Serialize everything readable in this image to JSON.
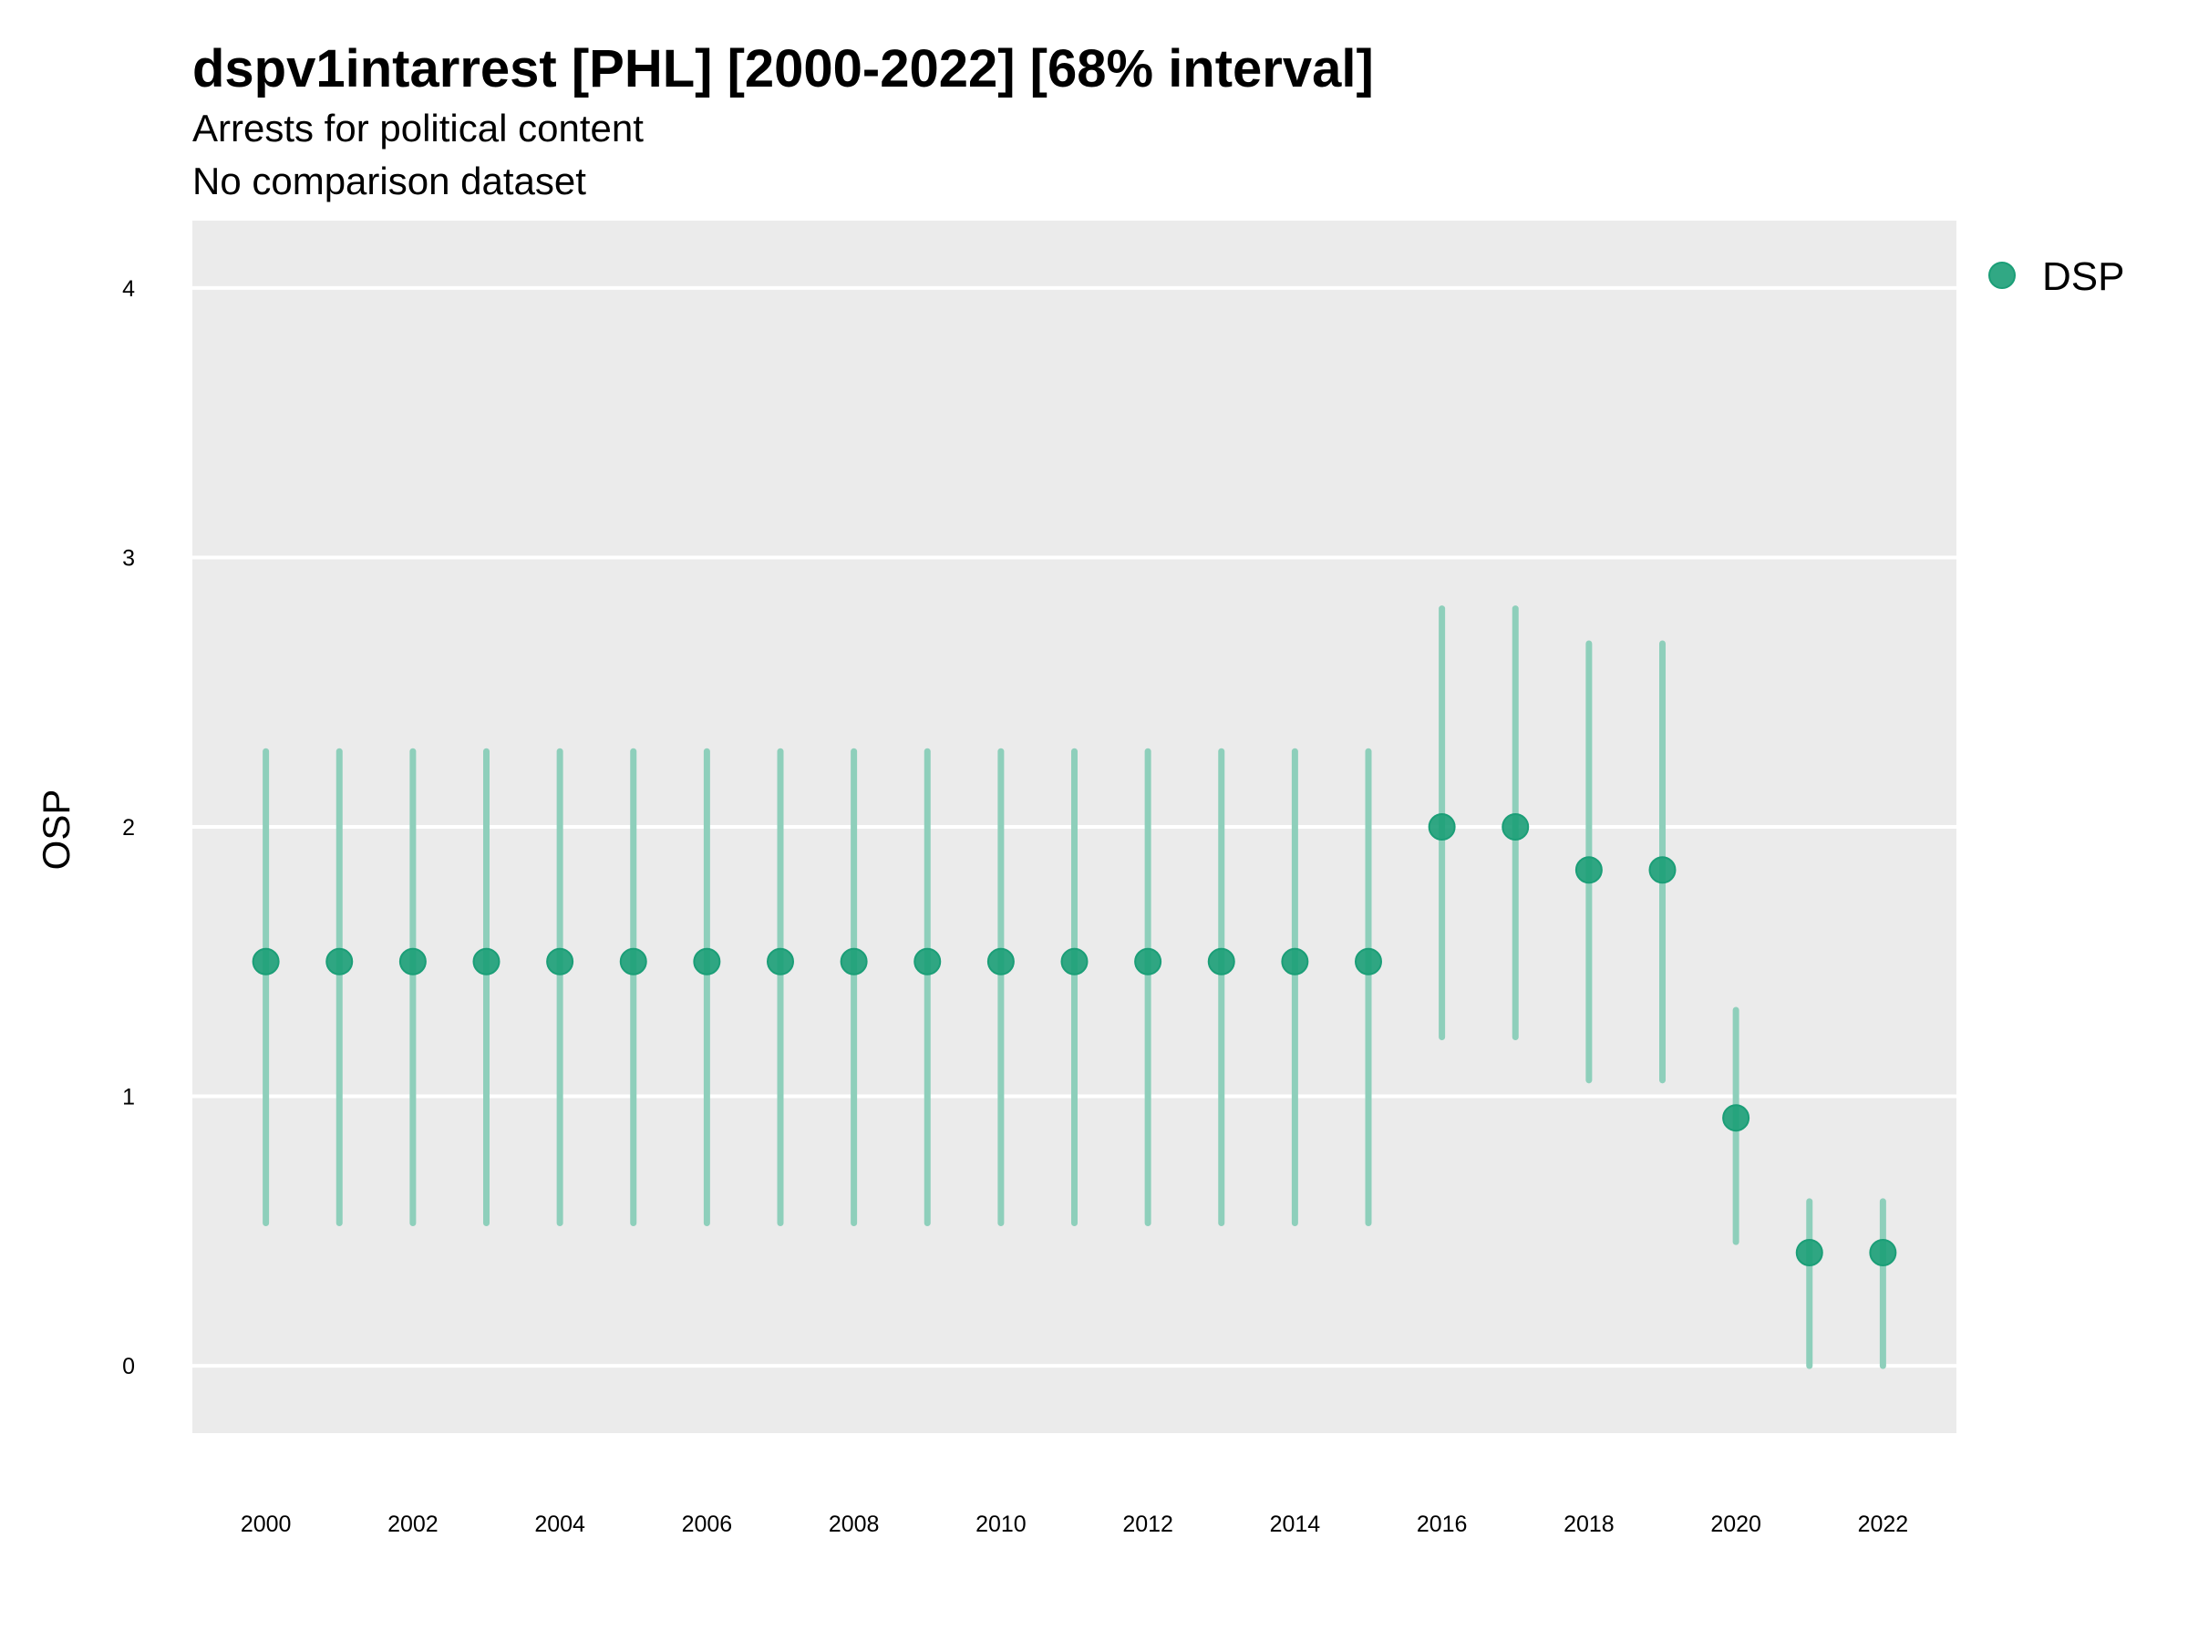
{
  "chart_data": {
    "type": "scatter",
    "title": "dspv1intarrest [PHL] [2000-2022] [68% interval]",
    "subtitle": [
      "Arrests for political content",
      "No comparison dataset"
    ],
    "xlabel": "",
    "ylabel": "OSP",
    "xlim": [
      1999,
      2023
    ],
    "ylim": [
      -0.25,
      4.25
    ],
    "x_ticks": [
      2000,
      2002,
      2004,
      2006,
      2008,
      2010,
      2012,
      2014,
      2016,
      2018,
      2020,
      2022
    ],
    "y_ticks": [
      0,
      1,
      2,
      3,
      4
    ],
    "grid": true,
    "legend": {
      "position": "right",
      "entries": [
        "DSP"
      ]
    },
    "colors": {
      "point": "#1b9e77",
      "interval": "#8ecfbb",
      "panel": "#ebebeb",
      "grid": "#ffffff"
    },
    "series": [
      {
        "name": "DSP",
        "x": [
          2000,
          2001,
          2002,
          2003,
          2004,
          2005,
          2006,
          2007,
          2008,
          2009,
          2010,
          2011,
          2012,
          2013,
          2014,
          2015,
          2016,
          2017,
          2018,
          2019,
          2020,
          2021,
          2022
        ],
        "y": [
          1.5,
          1.5,
          1.5,
          1.5,
          1.5,
          1.5,
          1.5,
          1.5,
          1.5,
          1.5,
          1.5,
          1.5,
          1.5,
          1.5,
          1.5,
          1.5,
          2.0,
          2.0,
          1.84,
          1.84,
          0.92,
          0.42,
          0.42
        ],
        "lower": [
          0.53,
          0.53,
          0.53,
          0.53,
          0.53,
          0.53,
          0.53,
          0.53,
          0.53,
          0.53,
          0.53,
          0.53,
          0.53,
          0.53,
          0.53,
          0.53,
          1.22,
          1.22,
          1.06,
          1.06,
          0.46,
          0.0,
          0.0
        ],
        "upper": [
          2.28,
          2.28,
          2.28,
          2.28,
          2.28,
          2.28,
          2.28,
          2.28,
          2.28,
          2.28,
          2.28,
          2.28,
          2.28,
          2.28,
          2.28,
          2.28,
          2.81,
          2.81,
          2.68,
          2.68,
          1.32,
          0.61,
          0.61
        ]
      }
    ]
  }
}
